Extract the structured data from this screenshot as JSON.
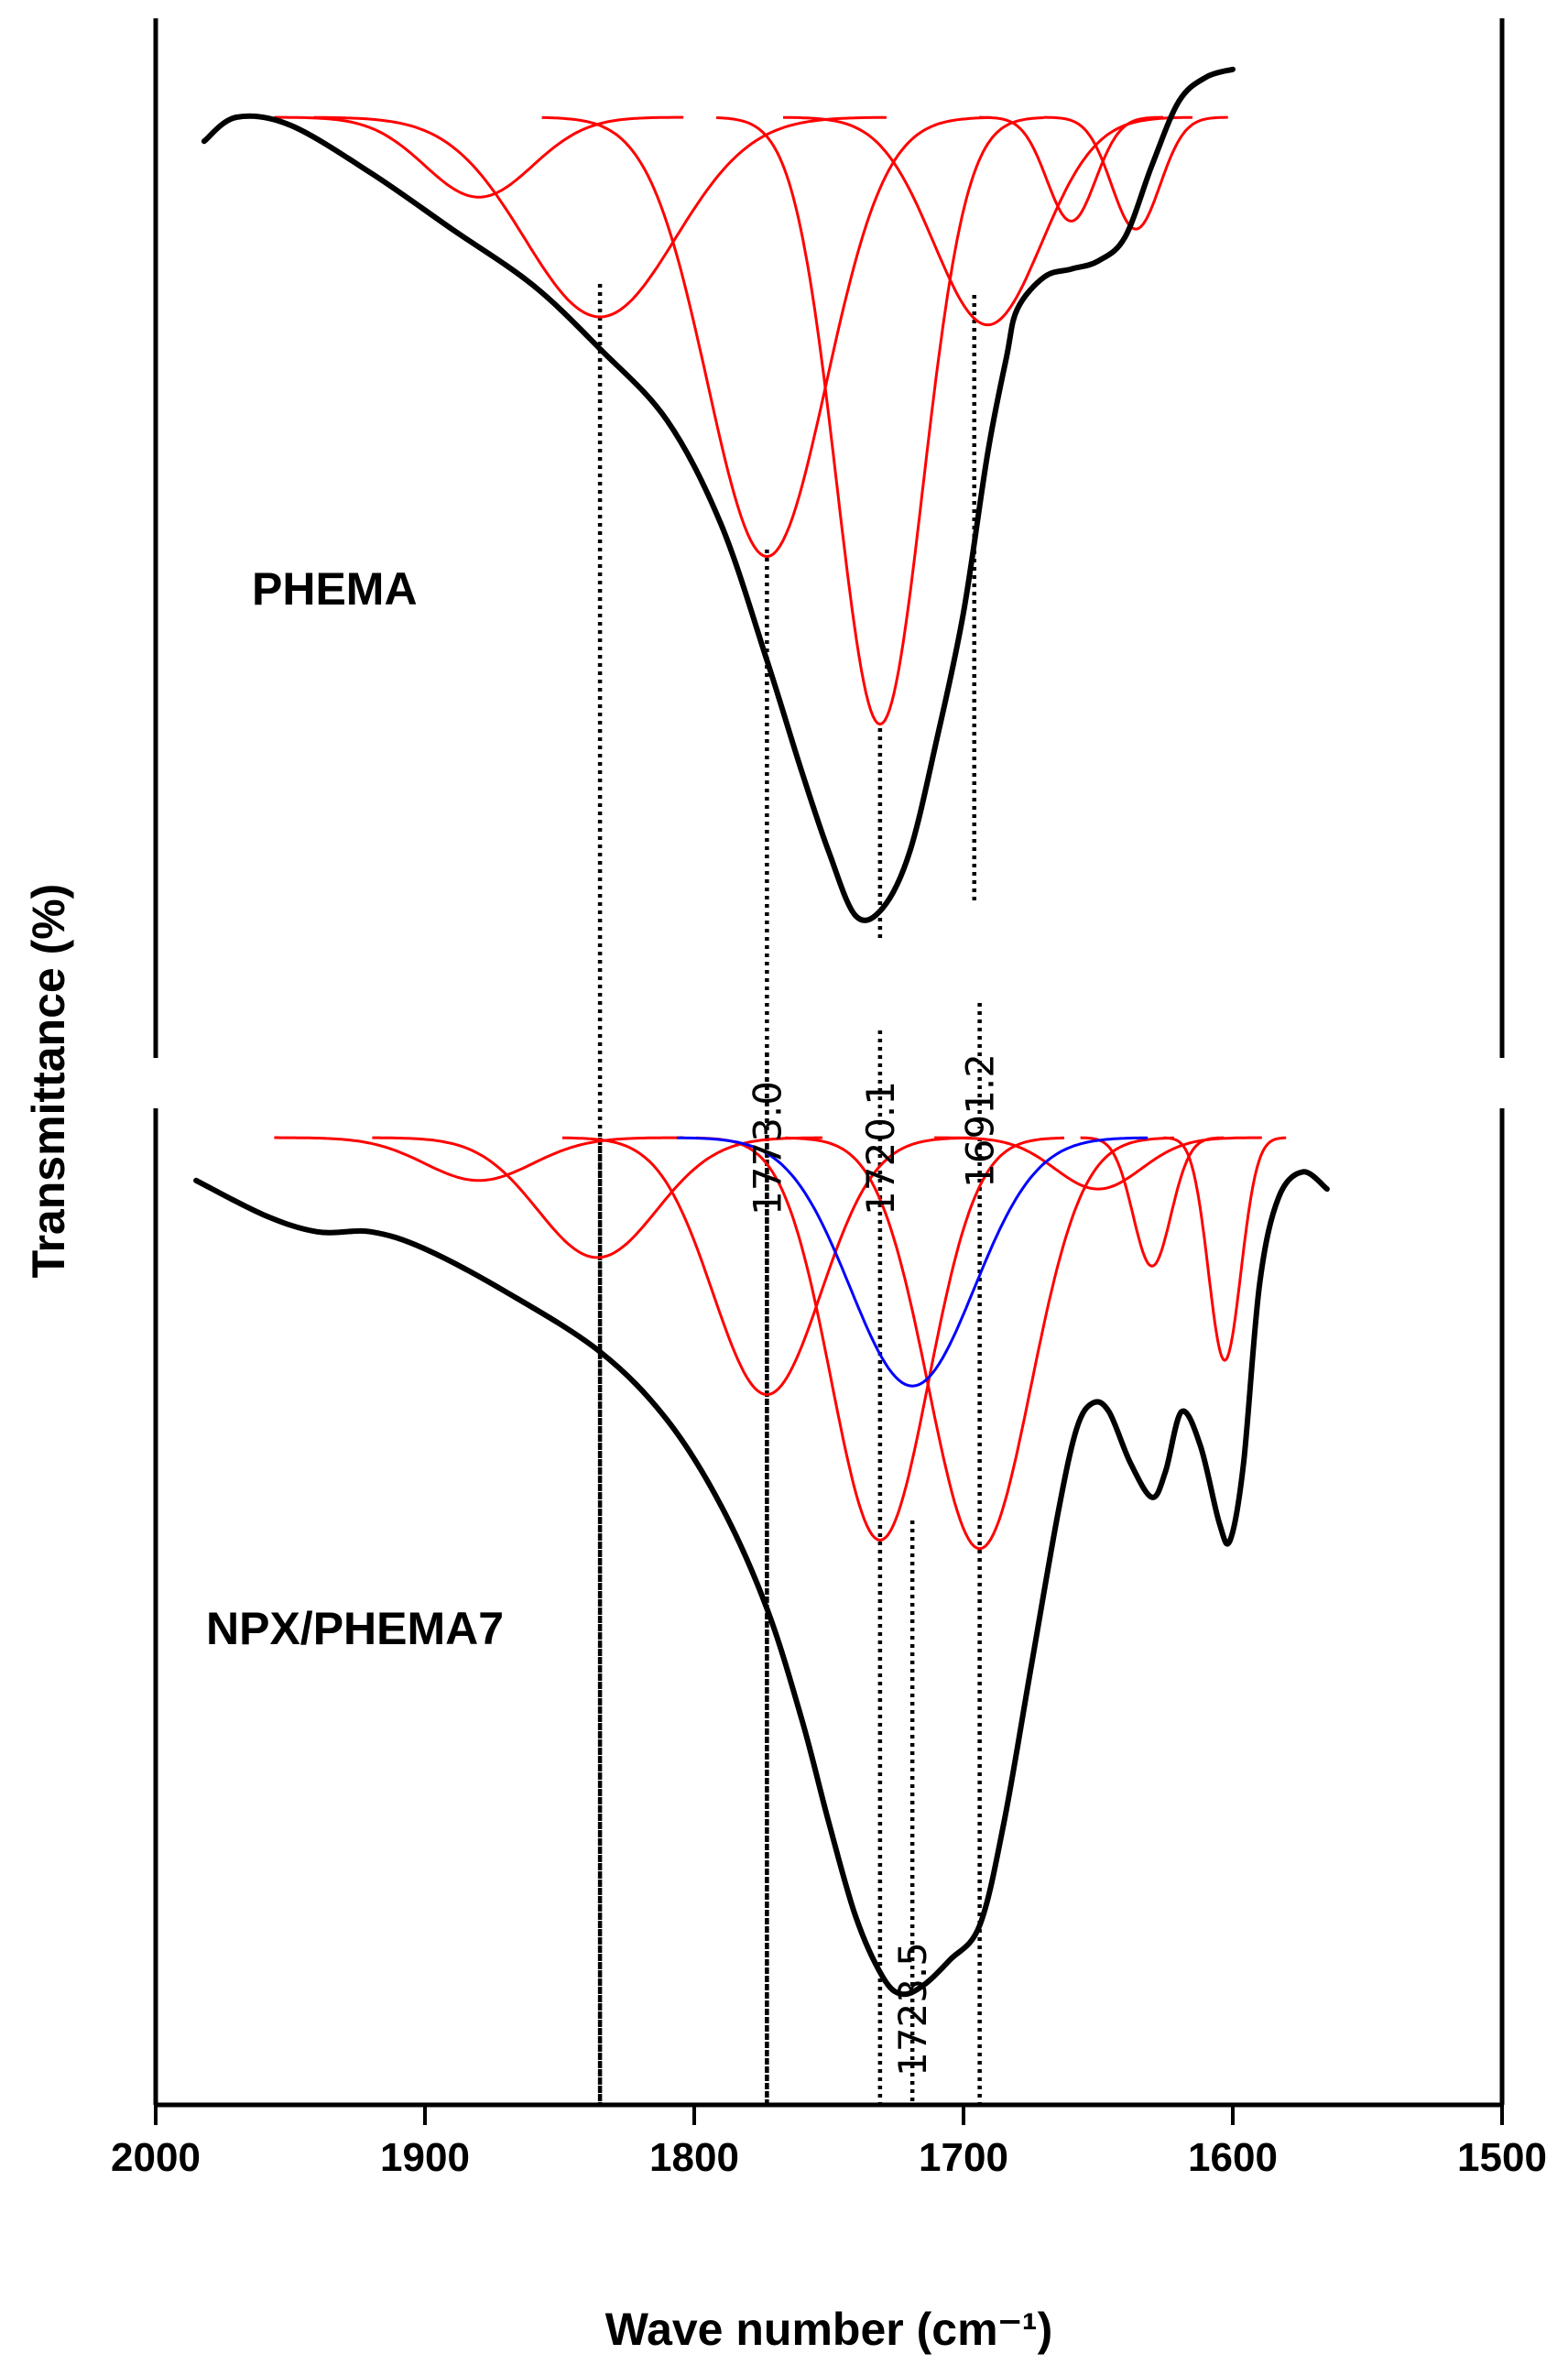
{
  "chart_data": {
    "type": "line",
    "title": "",
    "xlabel": "Wave number (cm⁻¹)",
    "ylabel": "Transmittance (%)",
    "xlim": [
      2000,
      1500
    ],
    "x_ticks": [
      "2000",
      "1900",
      "1800",
      "1700",
      "1600",
      "1500"
    ],
    "x_tick_values": [
      2000,
      1900,
      1800,
      1700,
      1600,
      1500
    ],
    "grid": false,
    "panels": [
      {
        "name": "PHEMA",
        "label": "PHEMA",
        "measured_color": "#000000",
        "measured": [
          [
            1982,
            0.97
          ],
          [
            1970,
            1.0
          ],
          [
            1950,
            0.99
          ],
          [
            1920,
            0.93
          ],
          [
            1890,
            0.86
          ],
          [
            1860,
            0.79
          ],
          [
            1835,
            0.71
          ],
          [
            1810,
            0.62
          ],
          [
            1790,
            0.49
          ],
          [
            1773,
            0.32
          ],
          [
            1760,
            0.18
          ],
          [
            1750,
            0.08
          ],
          [
            1740,
            0.0
          ],
          [
            1730,
            0.01
          ],
          [
            1720,
            0.08
          ],
          [
            1710,
            0.22
          ],
          [
            1700,
            0.38
          ],
          [
            1691,
            0.58
          ],
          [
            1684,
            0.7
          ],
          [
            1680,
            0.76
          ],
          [
            1670,
            0.8
          ],
          [
            1660,
            0.81
          ],
          [
            1650,
            0.82
          ],
          [
            1640,
            0.85
          ],
          [
            1630,
            0.94
          ],
          [
            1620,
            1.02
          ],
          [
            1610,
            1.05
          ],
          [
            1600,
            1.06
          ]
        ],
        "components": [
          {
            "center": 1880,
            "depth": 0.1,
            "width": 20,
            "color": "#ff0000"
          },
          {
            "center": 1835,
            "depth": 0.25,
            "width": 28,
            "color": "#ff0000"
          },
          {
            "center": 1773,
            "depth": 0.55,
            "width": 22,
            "color": "#ff0000"
          },
          {
            "center": 1731,
            "depth": 0.76,
            "width": 16,
            "color": "#ff0000"
          },
          {
            "center": 1691,
            "depth": 0.26,
            "width": 20,
            "color": "#ff0000"
          },
          {
            "center": 1660,
            "depth": 0.13,
            "width": 9,
            "color": "#ff0000"
          },
          {
            "center": 1636,
            "depth": 0.14,
            "width": 9,
            "color": "#ff0000"
          }
        ],
        "guide_lines": [
          1835,
          1773,
          1731,
          1696
        ],
        "annotations": [
          {
            "text": "1773.0",
            "x": 1773.0
          },
          {
            "text": "1720.1",
            "x": 1720.1
          },
          {
            "text": "1691.2",
            "x": 1691.2
          }
        ]
      },
      {
        "name": "NPX/PHEMA7",
        "label": "NPX/PHEMA7",
        "measured_color": "#000000",
        "measured": [
          [
            1985,
            0.95
          ],
          [
            1960,
            0.91
          ],
          [
            1940,
            0.89
          ],
          [
            1920,
            0.89
          ],
          [
            1900,
            0.87
          ],
          [
            1870,
            0.82
          ],
          [
            1835,
            0.75
          ],
          [
            1810,
            0.67
          ],
          [
            1790,
            0.57
          ],
          [
            1773,
            0.45
          ],
          [
            1760,
            0.32
          ],
          [
            1750,
            0.2
          ],
          [
            1740,
            0.09
          ],
          [
            1730,
            0.02
          ],
          [
            1723,
            0.0
          ],
          [
            1715,
            0.01
          ],
          [
            1705,
            0.04
          ],
          [
            1694,
            0.08
          ],
          [
            1685,
            0.2
          ],
          [
            1675,
            0.38
          ],
          [
            1665,
            0.56
          ],
          [
            1658,
            0.66
          ],
          [
            1652,
            0.69
          ],
          [
            1646,
            0.68
          ],
          [
            1638,
            0.62
          ],
          [
            1630,
            0.58
          ],
          [
            1625,
            0.61
          ],
          [
            1619,
            0.68
          ],
          [
            1612,
            0.64
          ],
          [
            1605,
            0.55
          ],
          [
            1601,
            0.53
          ],
          [
            1596,
            0.62
          ],
          [
            1590,
            0.83
          ],
          [
            1583,
            0.93
          ],
          [
            1574,
            0.96
          ],
          [
            1565,
            0.94
          ]
        ],
        "components": [
          {
            "center": 1880,
            "depth": 0.05,
            "width": 20,
            "color": "#ff0000"
          },
          {
            "center": 1836,
            "depth": 0.14,
            "width": 22,
            "color": "#ff0000"
          },
          {
            "center": 1773,
            "depth": 0.3,
            "width": 20,
            "color": "#ff0000"
          },
          {
            "center": 1731,
            "depth": 0.47,
            "width": 18,
            "color": "#ff0000"
          },
          {
            "center": 1694,
            "depth": 0.48,
            "width": 19,
            "color": "#ff0000"
          },
          {
            "center": 1650,
            "depth": 0.06,
            "width": 16,
            "color": "#ff0000"
          },
          {
            "center": 1630,
            "depth": 0.15,
            "width": 7,
            "color": "#ff0000"
          },
          {
            "center": 1603,
            "depth": 0.26,
            "width": 6,
            "color": "#ff0000"
          },
          {
            "center": 1719,
            "depth": 0.29,
            "width": 23,
            "color": "#0000ff"
          }
        ],
        "guide_lines": [
          1835,
          1773,
          1731,
          1719,
          1694
        ],
        "annotations": [
          {
            "text": "1723.5",
            "x": 1723.5
          }
        ]
      }
    ]
  }
}
